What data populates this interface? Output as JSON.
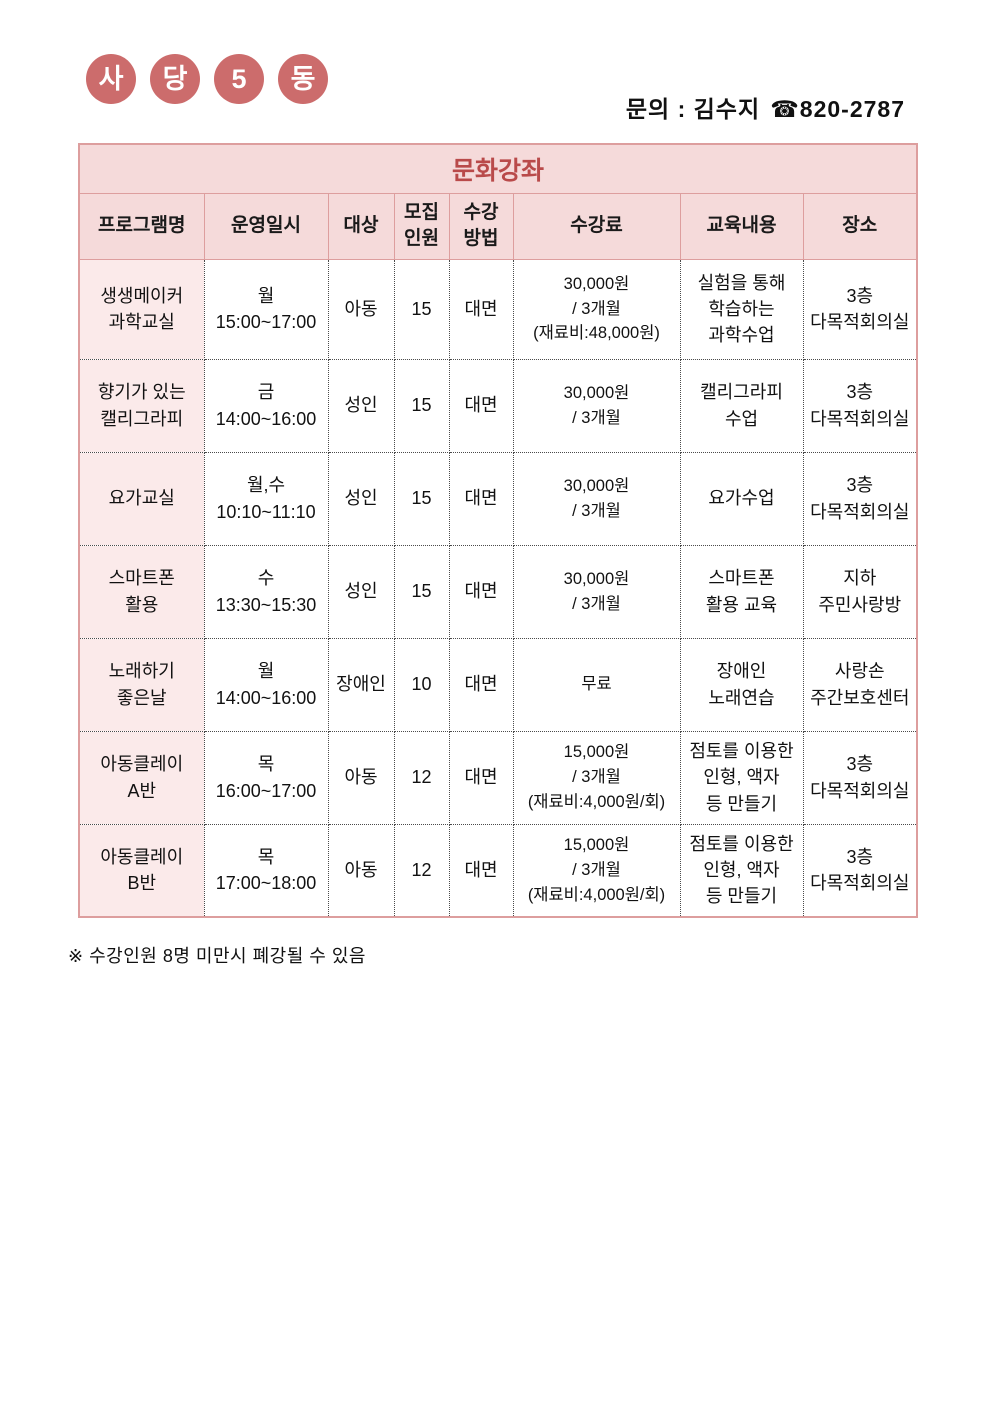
{
  "badge": {
    "letters": [
      "사",
      "당",
      "5",
      "동"
    ]
  },
  "contact": {
    "label": "문의 : 김수지",
    "phone_icon": "☎",
    "phone": "820-2787"
  },
  "table": {
    "title": "문화강좌",
    "columns": [
      "프로그램명",
      "운영일시",
      "대상",
      "모집\n인원",
      "수강\n방법",
      "수강료",
      "교육내용",
      "장소"
    ],
    "rows": [
      [
        "생생메이커\n과학교실",
        "월\n15:00~17:00",
        "아동",
        "15",
        "대면",
        "30,000원\n/ 3개월\n(재료비:48,000원)",
        "실험을 통해\n학습하는\n과학수업",
        "3층\n다목적회의실"
      ],
      [
        "향기가 있는\n캘리그라피",
        "금\n14:00~16:00",
        "성인",
        "15",
        "대면",
        "30,000원\n/ 3개월",
        "캘리그라피\n수업",
        "3층\n다목적회의실"
      ],
      [
        "요가교실",
        "월,수\n10:10~11:10",
        "성인",
        "15",
        "대면",
        "30,000원\n/ 3개월",
        "요가수업",
        "3층\n다목적회의실"
      ],
      [
        "스마트폰\n활용",
        "수\n13:30~15:30",
        "성인",
        "15",
        "대면",
        "30,000원\n/ 3개월",
        "스마트폰\n활용 교육",
        "지하\n주민사랑방"
      ],
      [
        "노래하기\n좋은날",
        "월\n14:00~16:00",
        "장애인",
        "10",
        "대면",
        "무료",
        "장애인\n노래연습",
        "사랑손\n주간보호센터"
      ],
      [
        "아동클레이\nA반",
        "목\n16:00~17:00",
        "아동",
        "12",
        "대면",
        "15,000원\n/ 3개월\n(재료비:4,000원/회)",
        "점토를 이용한\n인형, 액자\n등 만들기",
        "3층\n다목적회의실"
      ],
      [
        "아동클레이\nB반",
        "목\n17:00~18:00",
        "아동",
        "12",
        "대면",
        "15,000원\n/ 3개월\n(재료비:4,000원/회)",
        "점토를 이용한\n인형, 액자\n등 만들기",
        "3층\n다목적회의실"
      ]
    ]
  },
  "note": "※ 수강인원 8명 미만시 폐강될 수 있음",
  "colors": {
    "header_bg": "#f5dada",
    "first_col_bg": "#fbeaea",
    "table_border": "#dd9e9e",
    "title_text": "#b94a4a",
    "badge_bg": "#cc6c6c",
    "badge_text": "#ffffff"
  }
}
